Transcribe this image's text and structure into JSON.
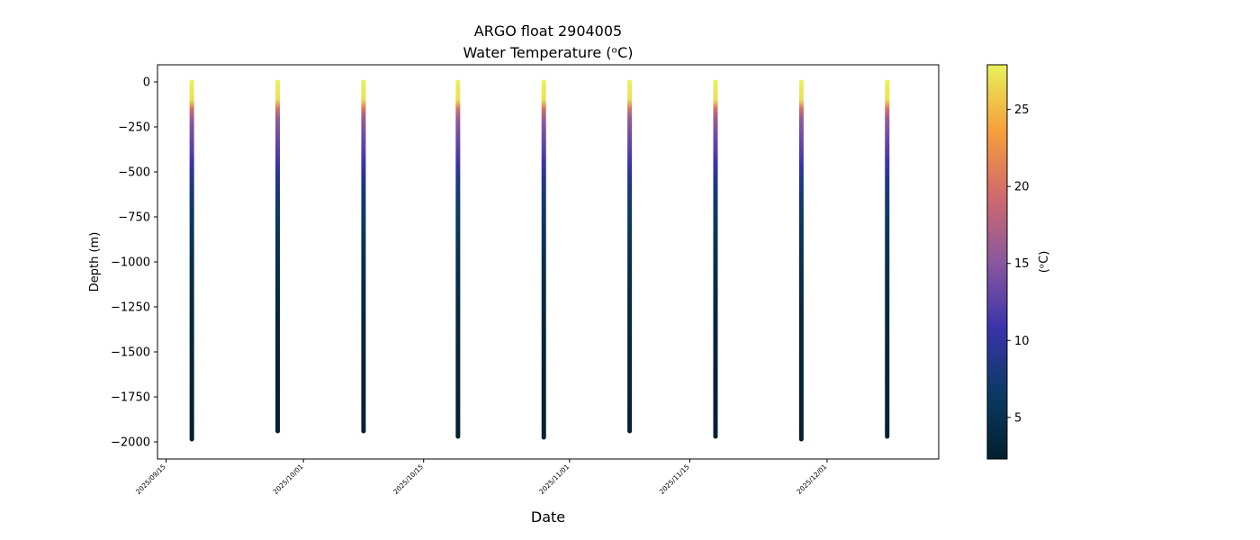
{
  "chart_data": {
    "type": "scatter",
    "title": "ARGO float 2904005",
    "subtitle": "Water Temperature (ᵒC)",
    "xlabel": "Date",
    "ylabel": "Depth (m)",
    "ylim": [
      -2095,
      95
    ],
    "xlim": [
      "2025-09-14",
      "2025-12-14"
    ],
    "y_ticks": [
      0,
      -250,
      -500,
      -750,
      -1000,
      -1250,
      -1500,
      -1750,
      -2000
    ],
    "x_ticks": [
      "2025/09/15",
      "2025/10/01",
      "2025/10/15",
      "2025/11/01",
      "2025/11/15",
      "2025/12/01"
    ],
    "colorbar": {
      "label": "(ᵒC)",
      "range": [
        2.3,
        27.9
      ],
      "ticks": [
        5,
        10,
        15,
        20,
        25
      ],
      "colormap": "thermal",
      "colors": [
        "#04202f",
        "#0a3a63",
        "#3b33ab",
        "#8b589d",
        "#d0696d",
        "#f69f3b",
        "#e8f15a"
      ]
    },
    "profiles": [
      {
        "date": "2025-09-18",
        "max_depth": -1985
      },
      {
        "date": "2025-09-28",
        "max_depth": -1940
      },
      {
        "date": "2025-10-08",
        "max_depth": -1940
      },
      {
        "date": "2025-10-19",
        "max_depth": -1970
      },
      {
        "date": "2025-10-29",
        "max_depth": -1975
      },
      {
        "date": "2025-11-08",
        "max_depth": -1940
      },
      {
        "date": "2025-11-18",
        "max_depth": -1970
      },
      {
        "date": "2025-11-28",
        "max_depth": -1985
      },
      {
        "date": "2025-12-08",
        "max_depth": -1970
      }
    ],
    "temperature_profile": [
      {
        "depth": 0,
        "temp": 27.9
      },
      {
        "depth": -100,
        "temp": 27.0
      },
      {
        "depth": -130,
        "temp": 24.0
      },
      {
        "depth": -160,
        "temp": 17.5
      },
      {
        "depth": -250,
        "temp": 14.5
      },
      {
        "depth": -400,
        "temp": 12.0
      },
      {
        "depth": -550,
        "temp": 8.5
      },
      {
        "depth": -750,
        "temp": 6.5
      },
      {
        "depth": -1000,
        "temp": 4.8
      },
      {
        "depth": -1300,
        "temp": 3.6
      },
      {
        "depth": -1600,
        "temp": 3.0
      },
      {
        "depth": -2000,
        "temp": 2.4
      }
    ]
  }
}
